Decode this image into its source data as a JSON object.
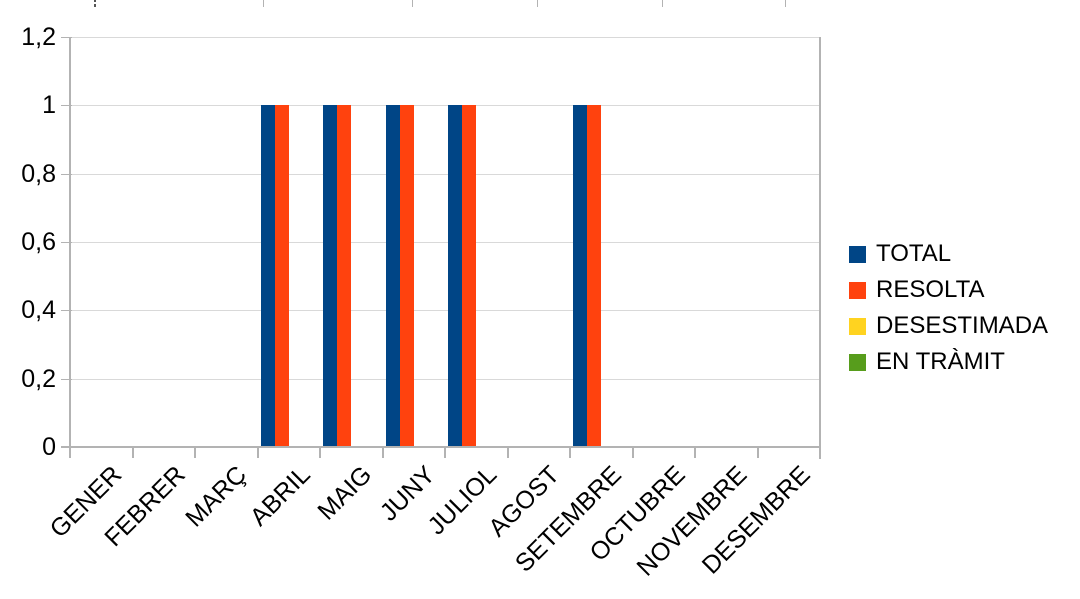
{
  "chart_data": {
    "type": "bar",
    "title": "",
    "categories": [
      "GENER",
      "FEBRER",
      "MARÇ",
      "ABRIL",
      "MAIG",
      "JUNY",
      "JULIOL",
      "AGOST",
      "SETEMBRE",
      "OCTUBRE",
      "NOVEMBRE",
      "DESEMBRE"
    ],
    "series": [
      {
        "name": "TOTAL",
        "color": "#004586",
        "values": [
          0,
          0,
          0,
          1,
          1,
          1,
          1,
          0,
          1,
          0,
          0,
          0
        ]
      },
      {
        "name": "RESOLTA",
        "color": "#FF420E",
        "values": [
          0,
          0,
          0,
          1,
          1,
          1,
          1,
          0,
          1,
          0,
          0,
          0
        ]
      },
      {
        "name": "DESESTIMADA",
        "color": "#FFD320",
        "values": [
          0,
          0,
          0,
          0,
          0,
          0,
          0,
          0,
          0,
          0,
          0,
          0
        ]
      },
      {
        "name": "EN TRÀMIT",
        "color": "#579D1C",
        "values": [
          0,
          0,
          0,
          0,
          0,
          0,
          0,
          0,
          0,
          0,
          0,
          0
        ]
      }
    ],
    "y_axis": {
      "min": 0,
      "max": 1.2,
      "tick_interval": 0.2,
      "tick_labels": [
        "0",
        "0,2",
        "0,4",
        "0,6",
        "0,8",
        "1",
        "1,2"
      ]
    },
    "x_axis": {
      "label_rotation_deg": -45
    },
    "legend_position": "right",
    "grid": "horizontal",
    "colors": {
      "grid": "#d9d9d9",
      "axis": "#b3b3b3",
      "text": "#000000",
      "background": "#ffffff"
    }
  }
}
